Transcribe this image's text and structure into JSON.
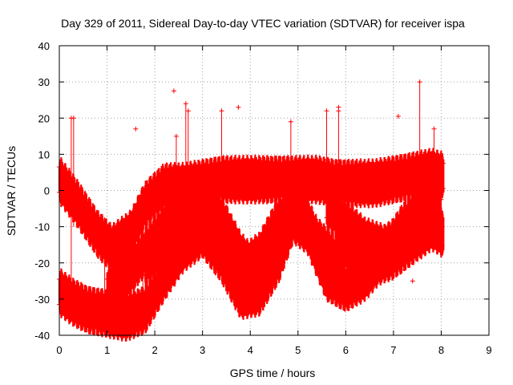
{
  "chart_data": {
    "type": "scatter",
    "title": "Day 329 of 2011, Sidereal Day-to-day VTEC variation (SDTVAR) for receiver ispa",
    "xlabel": "GPS time / hours",
    "ylabel": "SDTVAR / TECUs",
    "xlim": [
      0,
      9
    ],
    "ylim": [
      -40,
      40
    ],
    "xticks": [
      "0",
      "1",
      "2",
      "3",
      "4",
      "5",
      "6",
      "7",
      "8",
      "9"
    ],
    "yticks": [
      "-40",
      "-30",
      "-20",
      "-10",
      "0",
      "10",
      "20",
      "30",
      "40"
    ],
    "grid": true,
    "marker": "+",
    "series_color": "#ff0000",
    "bands": [
      {
        "name": "arc-high",
        "x": [
          0.0,
          0.4,
          0.8,
          1.1,
          1.5,
          1.8,
          2.2,
          2.6,
          3.0,
          3.4,
          3.8,
          4.2,
          4.6,
          5.0,
          5.4,
          5.8,
          6.2,
          6.6,
          7.0,
          7.4,
          7.8,
          8.05
        ],
        "y": [
          3,
          -4,
          -12,
          -16,
          -12,
          -4,
          1,
          1,
          2,
          3,
          3,
          3,
          3,
          3,
          3,
          2,
          2,
          2,
          3,
          4,
          5,
          4
        ]
      },
      {
        "name": "arc-low",
        "x": [
          0.0,
          0.3,
          0.6,
          1.0,
          1.4,
          1.8,
          2.2,
          2.6,
          3.0,
          3.4,
          3.8,
          4.2,
          4.6,
          4.9,
          5.2,
          5.6,
          6.0,
          6.4,
          6.8,
          7.2,
          7.6,
          7.8
        ],
        "y": [
          -28,
          -31,
          -33,
          -34,
          -35,
          -33,
          -24,
          -16,
          -12,
          -19,
          -29,
          -28,
          -19,
          -8,
          -11,
          -24,
          -27,
          -24,
          -18,
          -10,
          -4,
          -2
        ]
      },
      {
        "name": "arc-mid-1",
        "x": [
          1.0,
          1.4,
          1.8,
          2.2,
          2.6,
          3.0,
          3.4,
          3.8,
          4.2,
          4.6,
          4.9
        ],
        "y": [
          -28,
          -24,
          -17,
          -10,
          -5,
          -2,
          -8,
          -18,
          -24,
          -14,
          -2
        ]
      },
      {
        "name": "arc-mid-2",
        "x": [
          1.8,
          2.2,
          2.6,
          3.0,
          3.4,
          3.8,
          4.2,
          4.6,
          5.0,
          5.4,
          5.8,
          6.2
        ],
        "y": [
          -20,
          -16,
          -10,
          -3,
          -12,
          -22,
          -18,
          -8,
          -3,
          -14,
          -19,
          -12
        ]
      },
      {
        "name": "arc-mid-3",
        "x": [
          5.8,
          6.2,
          6.6,
          7.0,
          7.4,
          7.8,
          8.05
        ],
        "y": [
          -14,
          -18,
          -20,
          -18,
          -14,
          -10,
          -12
        ]
      },
      {
        "name": "arc-mid-4",
        "x": [
          5.6,
          6.0,
          6.4,
          6.8,
          7.2,
          7.6,
          8.0
        ],
        "y": [
          -4,
          -9,
          -14,
          -16,
          -13,
          -8,
          -6
        ]
      }
    ],
    "spikes": [
      {
        "x": 0.25,
        "ymin": -28,
        "ymax": 20
      },
      {
        "x": 0.3,
        "ymin": -10,
        "ymax": 20
      },
      {
        "x": 0.95,
        "ymin": -32,
        "ymax": -8
      },
      {
        "x": 1.05,
        "ymin": -37,
        "ymax": -20
      },
      {
        "x": 1.75,
        "ymin": -30,
        "ymax": -3
      },
      {
        "x": 2.45,
        "ymin": -5,
        "ymax": 15
      },
      {
        "x": 2.65,
        "ymin": -5,
        "ymax": 24
      },
      {
        "x": 2.7,
        "ymin": -3,
        "ymax": 22
      },
      {
        "x": 3.4,
        "ymin": -5,
        "ymax": 22
      },
      {
        "x": 4.85,
        "ymin": -3,
        "ymax": 19
      },
      {
        "x": 5.6,
        "ymin": -3,
        "ymax": 22
      },
      {
        "x": 5.85,
        "ymin": 1,
        "ymax": 22
      },
      {
        "x": 7.55,
        "ymin": -5,
        "ymax": 30
      },
      {
        "x": 7.85,
        "ymin": -10,
        "ymax": 17
      }
    ],
    "outliers": [
      {
        "x": 1.6,
        "y": 17
      },
      {
        "x": 2.4,
        "y": 27.5
      },
      {
        "x": 3.75,
        "y": 23
      },
      {
        "x": 7.1,
        "y": 20.5
      },
      {
        "x": 4.1,
        "y": -32
      },
      {
        "x": 1.05,
        "y": -37.5
      },
      {
        "x": 7.4,
        "y": -25
      },
      {
        "x": 5.85,
        "y": 23
      },
      {
        "x": 6.3,
        "y": -26
      }
    ]
  }
}
